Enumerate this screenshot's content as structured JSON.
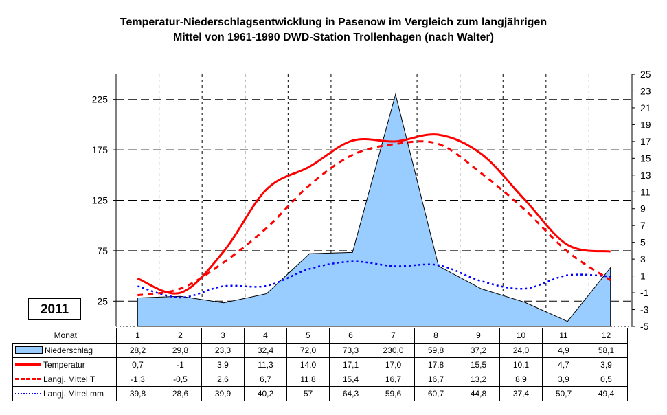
{
  "title_line1": "Temperatur-Niederschlagsentwicklung in Pasenow im Vergleich zum langjährigen",
  "title_line2": "Mittel von 1961-1990 DWD-Station Trollenhagen (nach Walter)",
  "year": "2011",
  "colors": {
    "precip_fill": "#99ccff",
    "temperature": "#ff0000",
    "mean_temp": "#ff0000",
    "mean_precip": "#0000ff"
  },
  "chart_data": {
    "type": "area",
    "title": "Temperatur-Niederschlagsentwicklung in Pasenow im Vergleich zum langjährigen Mittel von 1961-1990 DWD-Station Trollenhagen (nach Walter)",
    "x": [
      "1",
      "2",
      "3",
      "4",
      "5",
      "6",
      "7",
      "8",
      "9",
      "10",
      "11",
      "12"
    ],
    "xlabel": "Monat",
    "y_left": {
      "ylim": [
        0,
        250
      ],
      "ticks": [
        "25",
        "75",
        "125",
        "175",
        "225"
      ],
      "tick_values": [
        25,
        75,
        125,
        175,
        225
      ]
    },
    "y_right": {
      "ylim": [
        -5,
        25
      ],
      "ticks": [
        "25",
        "23",
        "21",
        "19",
        "17",
        "15",
        "13",
        "11",
        "9",
        "7",
        "5",
        "3",
        "1",
        "-1",
        "-3",
        "-5"
      ],
      "tick_values": [
        25,
        23,
        21,
        19,
        17,
        15,
        13,
        11,
        9,
        7,
        5,
        3,
        1,
        -1,
        -3,
        -5
      ]
    },
    "grid": true,
    "series": [
      {
        "name": "Niederschlag",
        "type": "area",
        "axis": "left",
        "values": [
          28.2,
          29.8,
          23.3,
          32.4,
          72.0,
          73.3,
          230.0,
          59.8,
          37.2,
          24.0,
          4.9,
          58.1
        ],
        "labels": [
          "28,2",
          "29,8",
          "23,3",
          "32,4",
          "72,0",
          "73,3",
          "230,0",
          "59,8",
          "37,2",
          "24,0",
          "4,9",
          "58,1"
        ]
      },
      {
        "name": "Temperatur",
        "type": "line",
        "axis": "right",
        "values": [
          0.7,
          -1,
          3.9,
          11.3,
          14.0,
          17.1,
          17.0,
          17.8,
          15.5,
          10.1,
          4.7,
          3.9
        ],
        "labels": [
          "0,7",
          "-1",
          "3,9",
          "11,3",
          "14,0",
          "17,1",
          "17,0",
          "17,8",
          "15,5",
          "10,1",
          "4,7",
          "3,9"
        ]
      },
      {
        "name": "Langj. Mittel T",
        "type": "line",
        "axis": "right",
        "values": [
          -1.3,
          -0.5,
          2.6,
          6.7,
          11.8,
          15.4,
          16.7,
          16.7,
          13.2,
          8.9,
          3.9,
          0.5
        ],
        "labels": [
          "-1,3",
          "-0,5",
          "2,6",
          "6,7",
          "11,8",
          "15,4",
          "16,7",
          "16,7",
          "13,2",
          "8,9",
          "3,9",
          "0,5"
        ]
      },
      {
        "name": "Langj. Mittel mm",
        "type": "line",
        "axis": "left",
        "values": [
          39.8,
          28.6,
          39.9,
          40.2,
          57,
          64.3,
          59.6,
          60.7,
          44.8,
          37.4,
          50.7,
          49.4
        ],
        "labels": [
          "39,8",
          "28,6",
          "39,9",
          "40,2",
          "57",
          "64,3",
          "59,6",
          "60,7",
          "44,8",
          "37,4",
          "50,7",
          "49,4"
        ]
      }
    ]
  }
}
